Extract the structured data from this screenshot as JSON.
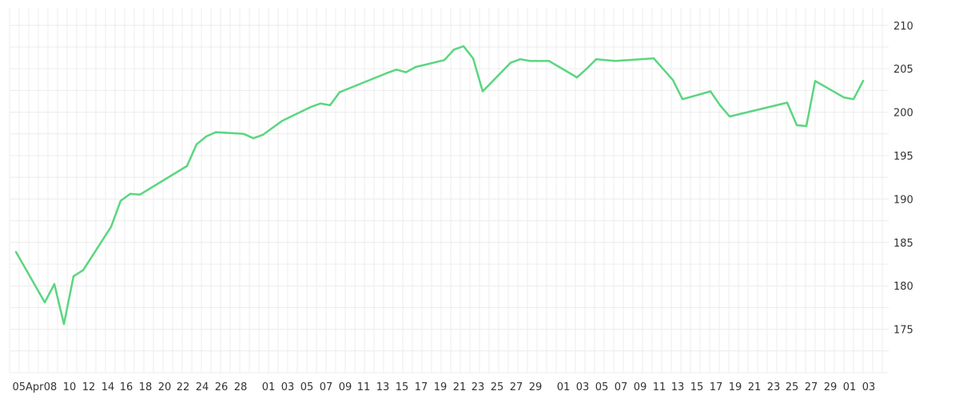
{
  "chart_data": {
    "type": "line",
    "title": "",
    "xlabel": "",
    "ylabel": "",
    "ylim": [
      170,
      212
    ],
    "y_ticks": [
      175,
      180,
      185,
      190,
      195,
      200,
      205,
      210
    ],
    "y_axis_side": "right",
    "grid": true,
    "legend": "none",
    "x_tick_labels": [
      "05Apr",
      "08",
      "10",
      "12",
      "14",
      "16",
      "18",
      "20",
      "22",
      "24",
      "26",
      "28",
      "01",
      "03",
      "05",
      "07",
      "09",
      "11",
      "13",
      "15",
      "17",
      "19",
      "21",
      "23",
      "25",
      "27",
      "29",
      "01",
      "03",
      "05",
      "07",
      "09",
      "11",
      "13",
      "15",
      "17",
      "19",
      "21",
      "23",
      "25",
      "27",
      "29",
      "01",
      "03"
    ],
    "series": [
      {
        "color": "#5ad67f",
        "x": [
          "05Apr",
          "08",
          "09",
          "10",
          "11",
          "12",
          "15",
          "16",
          "17",
          "18",
          "23",
          "24",
          "25",
          "26",
          "29",
          "30",
          "01",
          "02",
          "05",
          "06",
          "07",
          "08",
          "13",
          "14",
          "15",
          "16",
          "20",
          "21",
          "22",
          "23",
          "24",
          "27",
          "28",
          "29",
          "01",
          "02",
          "03",
          "04",
          "06",
          "07",
          "08",
          "09",
          "10",
          "11",
          "14",
          "15",
          "16",
          "17",
          "19",
          "20",
          "21",
          "22",
          "23",
          "24",
          "25"
        ],
        "values": [
          183.9,
          178.1,
          180.2,
          175.6,
          181.1,
          181.8,
          186.8,
          189.8,
          190.6,
          190.5,
          193.8,
          196.3,
          197.2,
          197.7,
          197.5,
          197.0,
          197.4,
          199.0,
          200.6,
          201.0,
          200.8,
          202.3,
          204.5,
          204.9,
          204.6,
          205.2,
          206.0,
          207.2,
          207.6,
          206.2,
          202.4,
          205.7,
          206.1,
          205.9,
          205.9,
          204.0,
          205.0,
          206.1,
          205.9,
          206.2,
          203.7,
          201.5,
          202.4,
          200.8,
          199.5,
          201.1,
          198.5,
          198.4,
          203.6,
          201.7,
          201.5,
          203.6,
          203.6,
          203.6,
          203.6
        ]
      }
    ]
  }
}
